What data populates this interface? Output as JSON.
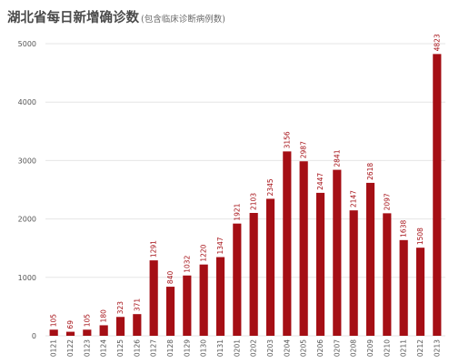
{
  "title": "湖北省每日新增确诊数",
  "subtitle": "(包含临床诊断病例数)",
  "chart_data": {
    "type": "bar",
    "title": "湖北省每日新增确诊数",
    "subtitle": "(包含临床诊断病例数)",
    "xlabel": "",
    "ylabel": "",
    "ylim": [
      0,
      5000
    ],
    "yticks": [
      0,
      1000,
      2000,
      3000,
      4000,
      5000
    ],
    "grid": true,
    "bar_color": "#a50f15",
    "categories": [
      "0121",
      "0122",
      "0123",
      "0124",
      "0125",
      "0126",
      "0127",
      "0128",
      "0129",
      "0130",
      "0131",
      "0201",
      "0202",
      "0203",
      "0204",
      "0205",
      "0206",
      "0207",
      "0208",
      "0209",
      "0210",
      "0211",
      "0212",
      "0213"
    ],
    "values": [
      105,
      69,
      105,
      180,
      323,
      371,
      1291,
      840,
      1032,
      1220,
      1347,
      1921,
      2103,
      2345,
      3156,
      2987,
      2447,
      2841,
      2147,
      2618,
      2097,
      1638,
      1508,
      4823
    ]
  }
}
